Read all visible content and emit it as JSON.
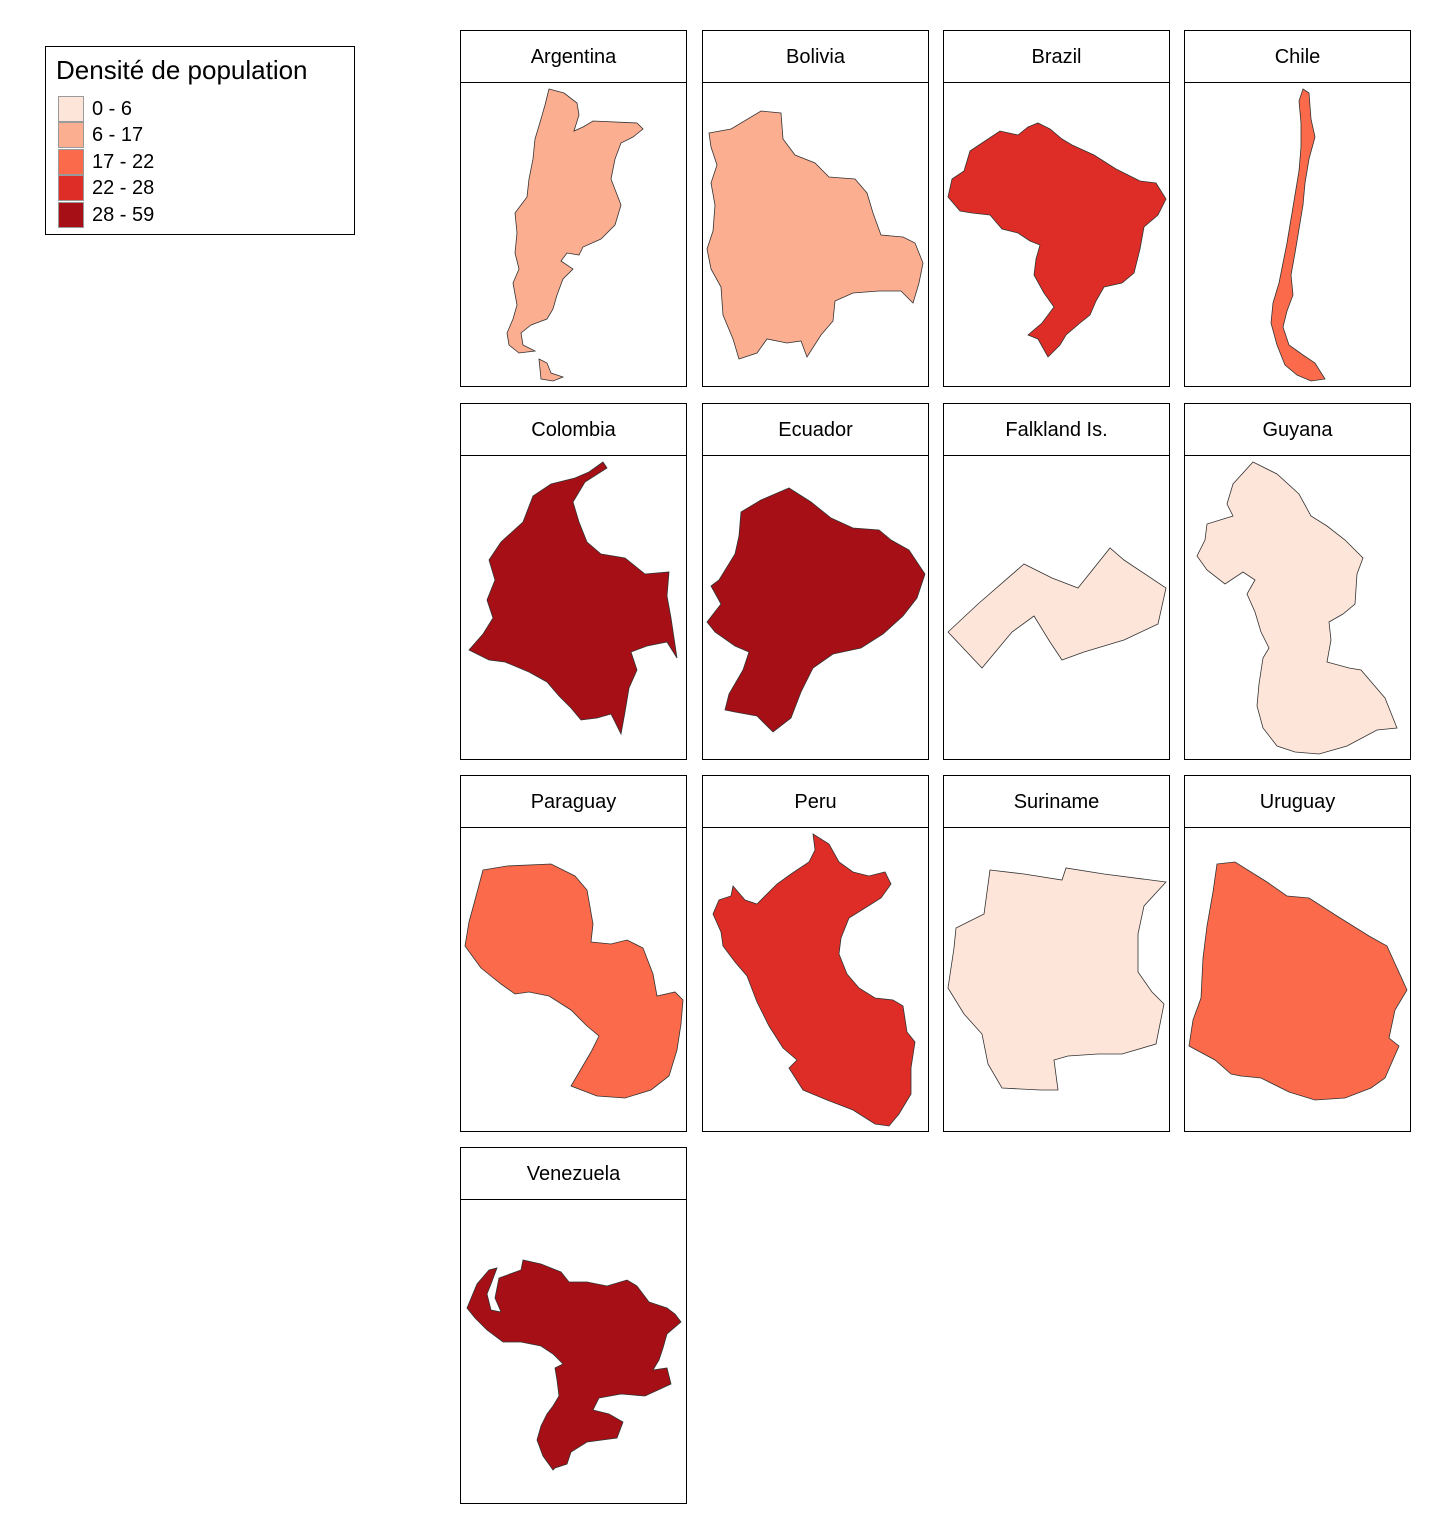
{
  "legend": {
    "title": "Densité de population",
    "classes": [
      {
        "label": "0 - 6",
        "color": "#fee5d9"
      },
      {
        "label": "6 - 17",
        "color": "#fcae91"
      },
      {
        "label": "17 - 22",
        "color": "#fb6a4a"
      },
      {
        "label": "22 - 28",
        "color": "#de2d26"
      },
      {
        "label": "28 - 59",
        "color": "#a50f15"
      }
    ]
  },
  "panels": [
    {
      "title": "Argentina",
      "color": "#fcae91"
    },
    {
      "title": "Bolivia",
      "color": "#fcae91"
    },
    {
      "title": "Brazil",
      "color": "#de2d26"
    },
    {
      "title": "Chile",
      "color": "#fb6a4a"
    },
    {
      "title": "Colombia",
      "color": "#a50f15"
    },
    {
      "title": "Ecuador",
      "color": "#a50f15"
    },
    {
      "title": "Falkland Is.",
      "color": "#fee5d9"
    },
    {
      "title": "Guyana",
      "color": "#fee5d9"
    },
    {
      "title": "Paraguay",
      "color": "#fb6a4a"
    },
    {
      "title": "Peru",
      "color": "#de2d26"
    },
    {
      "title": "Suriname",
      "color": "#fee5d9"
    },
    {
      "title": "Uruguay",
      "color": "#fb6a4a"
    },
    {
      "title": "Venezuela",
      "color": "#a50f15"
    }
  ]
}
